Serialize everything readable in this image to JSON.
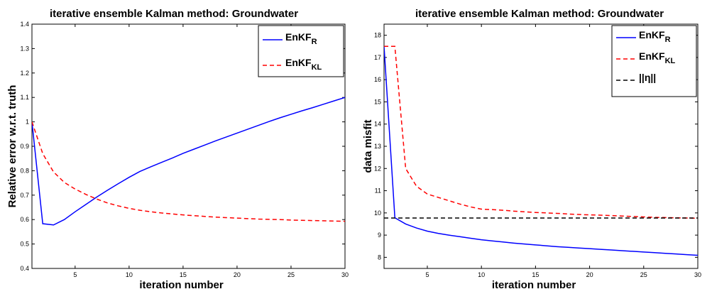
{
  "chart_data": [
    {
      "type": "line",
      "title": "iterative ensemble Kalman method: Groundwater",
      "xlabel": "iteration number",
      "ylabel": "Relative error w.r.t. truth",
      "xlim": [
        1,
        30
      ],
      "ylim": [
        0.4,
        1.4
      ],
      "xticks": [
        5,
        10,
        15,
        20,
        25,
        30
      ],
      "yticks": [
        0.4,
        0.5,
        0.6,
        0.7,
        0.8,
        0.9,
        1,
        1.1,
        1.2,
        1.3,
        1.4
      ],
      "grid": false,
      "legend_position": "top-right",
      "series": [
        {
          "name": "EnKF",
          "name_sub": "R",
          "color": "#0000ff",
          "dash": "solid",
          "x": [
            1,
            2,
            3,
            4,
            5,
            6,
            7,
            8,
            9,
            10,
            11,
            12,
            13,
            14,
            15,
            16,
            17,
            18,
            19,
            20,
            21,
            22,
            23,
            24,
            25,
            26,
            27,
            28,
            29,
            30
          ],
          "y": [
            1.0,
            0.583,
            0.578,
            0.6,
            0.632,
            0.662,
            0.692,
            0.72,
            0.747,
            0.773,
            0.797,
            0.816,
            0.834,
            0.852,
            0.871,
            0.888,
            0.905,
            0.922,
            0.938,
            0.954,
            0.97,
            0.986,
            1.002,
            1.017,
            1.031,
            1.045,
            1.058,
            1.072,
            1.086,
            1.1
          ]
        },
        {
          "name": "EnKF",
          "name_sub": "KL",
          "color": "#ff0000",
          "dash": "dashed",
          "x": [
            1,
            2,
            3,
            4,
            5,
            6,
            7,
            8,
            9,
            10,
            11,
            12,
            13,
            14,
            15,
            16,
            17,
            18,
            19,
            20,
            21,
            22,
            23,
            24,
            25,
            26,
            27,
            28,
            29,
            30
          ],
          "y": [
            1.0,
            0.87,
            0.795,
            0.752,
            0.725,
            0.703,
            0.684,
            0.668,
            0.656,
            0.646,
            0.638,
            0.632,
            0.627,
            0.623,
            0.619,
            0.616,
            0.613,
            0.61,
            0.608,
            0.606,
            0.604,
            0.602,
            0.601,
            0.6,
            0.598,
            0.597,
            0.596,
            0.595,
            0.594,
            0.593
          ]
        }
      ]
    },
    {
      "type": "line",
      "title": "iterative ensemble Kalman method: Groundwater",
      "xlabel": "iteration number",
      "ylabel": "data misfit",
      "xlim": [
        1,
        30
      ],
      "ylim": [
        7.5,
        18.5
      ],
      "xticks": [
        5,
        10,
        15,
        20,
        25,
        30
      ],
      "yticks": [
        8,
        9,
        10,
        11,
        12,
        13,
        14,
        15,
        16,
        17,
        18
      ],
      "grid": false,
      "legend_position": "top-right",
      "series": [
        {
          "name": "EnKF",
          "name_sub": "R",
          "color": "#0000ff",
          "dash": "solid",
          "x": [
            1,
            2,
            3,
            4,
            5,
            6,
            7,
            8,
            9,
            10,
            11,
            12,
            13,
            14,
            15,
            16,
            17,
            18,
            19,
            20,
            21,
            22,
            23,
            24,
            25,
            26,
            27,
            28,
            29,
            30
          ],
          "y": [
            17.5,
            9.78,
            9.5,
            9.32,
            9.18,
            9.08,
            9.0,
            8.93,
            8.86,
            8.79,
            8.74,
            8.69,
            8.64,
            8.6,
            8.56,
            8.52,
            8.48,
            8.45,
            8.42,
            8.39,
            8.36,
            8.33,
            8.3,
            8.27,
            8.24,
            8.21,
            8.18,
            8.15,
            8.12,
            8.09
          ]
        },
        {
          "name": "EnKF",
          "name_sub": "KL",
          "color": "#ff0000",
          "dash": "dashed",
          "x": [
            1,
            2,
            3,
            4,
            5,
            6,
            7,
            8,
            9,
            10,
            11,
            12,
            13,
            14,
            15,
            16,
            17,
            18,
            19,
            20,
            21,
            22,
            23,
            24,
            25,
            26,
            27,
            28,
            29,
            30
          ],
          "y": [
            17.5,
            17.5,
            12.0,
            11.2,
            10.85,
            10.7,
            10.55,
            10.4,
            10.27,
            10.17,
            10.15,
            10.12,
            10.08,
            10.05,
            10.02,
            10.0,
            9.98,
            9.95,
            9.93,
            9.91,
            9.9,
            9.88,
            9.86,
            9.84,
            9.82,
            9.8,
            9.79,
            9.78,
            9.77,
            9.76
          ]
        },
        {
          "name": "||η||",
          "color": "#000000",
          "dash": "dashed",
          "x": [
            1,
            30
          ],
          "y": [
            9.77,
            9.77
          ]
        }
      ]
    }
  ]
}
